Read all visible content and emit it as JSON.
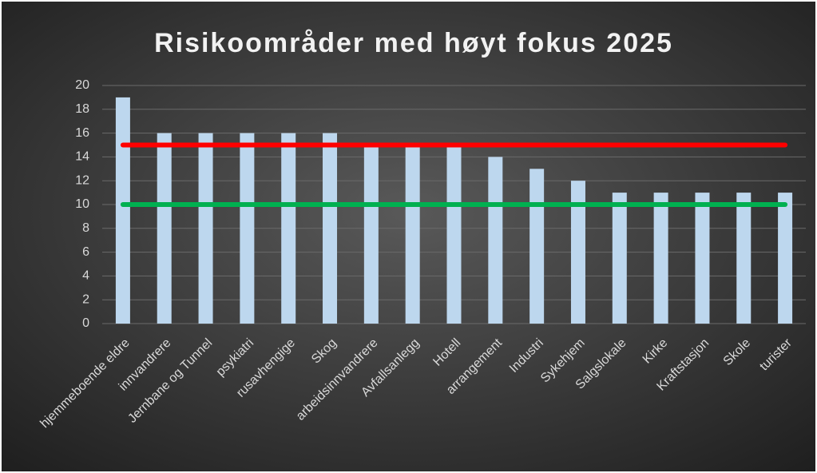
{
  "chart_data": {
    "type": "bar",
    "title": "Risikoområder med høyt fokus 2025",
    "categories": [
      "hjemmeboende eldre",
      "innvandrere",
      "Jernbane og Tunnel",
      "psykiatri",
      "rusavhengige",
      "Skog",
      "arbeidsinnvandrere",
      "Avfallsanlegg",
      "Hotell",
      "arrangement",
      "Industri",
      "Sykehjem",
      "Salgslokale",
      "Kirke",
      "Kraftstasjon",
      "Skole",
      "turister"
    ],
    "values": [
      19,
      16,
      16,
      16,
      16,
      16,
      15,
      15,
      15,
      14,
      13,
      12,
      11,
      11,
      11,
      11,
      11
    ],
    "color": "#bdd7ee",
    "lines": [
      {
        "value": 15,
        "color": "#ff0000"
      },
      {
        "value": 10,
        "color": "#00b050"
      }
    ],
    "ylim": [
      0,
      20
    ],
    "yticks": [
      0,
      2,
      4,
      6,
      8,
      10,
      12,
      14,
      16,
      18,
      20
    ],
    "grid": true
  }
}
